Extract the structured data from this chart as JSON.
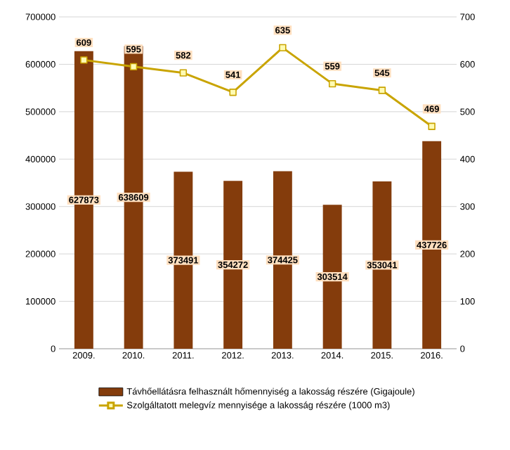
{
  "chart_data": {
    "type": "bar",
    "categories": [
      "2009.",
      "2010.",
      "2011.",
      "2012.",
      "2013.",
      "2014.",
      "2015.",
      "2016."
    ],
    "series": [
      {
        "name": "Távhőellátásra felhasznált hőmennyiség a lakosság részére (Gigajoule)",
        "color": "#843c0c",
        "values": [
          627873,
          638609,
          373491,
          354272,
          374425,
          303514,
          353041,
          437726
        ]
      },
      {
        "name": "Szolgáltatott melegvíz mennyisége a lakosság részére (1000 m3)",
        "type": "line",
        "axis": "y2",
        "color": "#c9a400",
        "marker": "square",
        "values": [
          609,
          595,
          582,
          541,
          635,
          559,
          545,
          469
        ]
      }
    ],
    "ylim": [
      0,
      700000
    ],
    "yticks": [
      0,
      100000,
      200000,
      300000,
      400000,
      500000,
      600000,
      700000
    ],
    "y2lim": [
      0,
      700
    ],
    "y2ticks": [
      0,
      100,
      200,
      300,
      400,
      500,
      600,
      700
    ],
    "grid": "y",
    "legend": "bottom",
    "data_labels": true
  }
}
